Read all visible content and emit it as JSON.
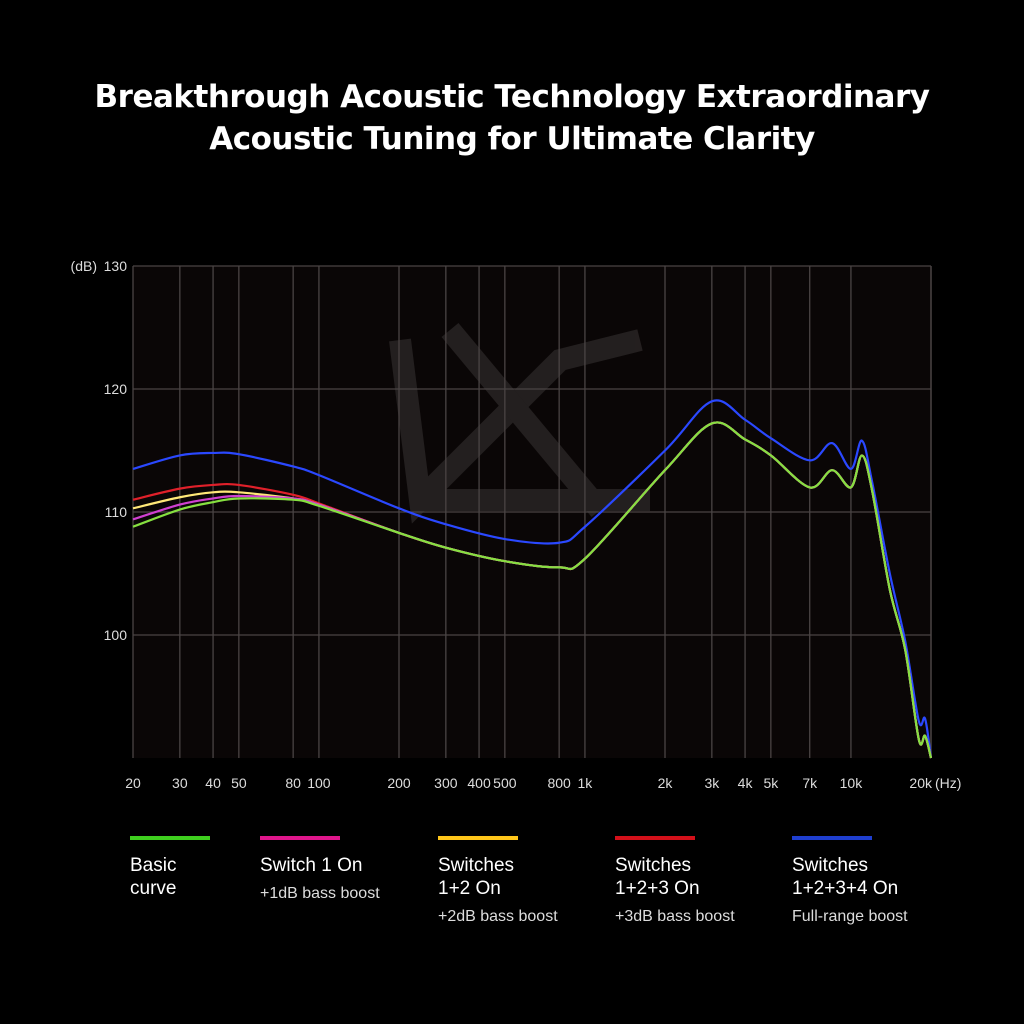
{
  "title_line1": "Breakthrough Acoustic Technology Extraordinary",
  "title_line2": "Acoustic Tuning for Ultimate Clarity",
  "chart_data": {
    "type": "line",
    "title": "Breakthrough Acoustic Technology Extraordinary Acoustic Tuning for Ultimate Clarity",
    "ylabel": "(dB)",
    "xlabel": "(Hz)",
    "xscale": "log",
    "xlim": [
      20,
      20000
    ],
    "ylim": [
      90,
      130
    ],
    "grid": true,
    "legend_placement": "bottom",
    "y_ticks": [
      130,
      120,
      110,
      100
    ],
    "x_ticks": [
      {
        "v": 20,
        "label": "20"
      },
      {
        "v": 30,
        "label": "30"
      },
      {
        "v": 40,
        "label": "40"
      },
      {
        "v": 50,
        "label": "50"
      },
      {
        "v": 80,
        "label": "80"
      },
      {
        "v": 100,
        "label": "100"
      },
      {
        "v": 200,
        "label": "200"
      },
      {
        "v": 300,
        "label": "300"
      },
      {
        "v": 400,
        "label": "400"
      },
      {
        "v": 500,
        "label": "500"
      },
      {
        "v": 800,
        "label": "800"
      },
      {
        "v": 1000,
        "label": "1k"
      },
      {
        "v": 2000,
        "label": "2k"
      },
      {
        "v": 3000,
        "label": "3k"
      },
      {
        "v": 4000,
        "label": "4k"
      },
      {
        "v": 5000,
        "label": "5k"
      },
      {
        "v": 7000,
        "label": "7k"
      },
      {
        "v": 10000,
        "label": "10k"
      },
      {
        "v": 20000,
        "label": "20k"
      }
    ],
    "x": [
      20,
      30,
      40,
      50,
      80,
      100,
      200,
      300,
      500,
      800,
      1000,
      2000,
      3000,
      4000,
      5000,
      7000,
      8500,
      10000,
      11000,
      12000,
      14000,
      16000,
      18000,
      19000,
      20000
    ],
    "series": [
      {
        "name": "Switches 1+2+3+4 On",
        "sub": "Full-range boost",
        "color": "#2a48ff",
        "legend_color": "#1f3fd0",
        "values": [
          113.5,
          114.6,
          114.8,
          114.7,
          113.7,
          113,
          110.3,
          109,
          107.8,
          107.5,
          108.8,
          115,
          119,
          117.5,
          116,
          114.2,
          115.6,
          113.5,
          115.8,
          112.5,
          105,
          99.5,
          93,
          93.2,
          90
        ]
      },
      {
        "name": "Switches 1+2+3 On",
        "sub": "+3dB bass boost",
        "color": "#e0202a",
        "legend_color": "#d4101a",
        "values": [
          111,
          111.9,
          112.2,
          112.2,
          111.4,
          110.7,
          108.3,
          107.1,
          106,
          105.5,
          106.2,
          113.4,
          117.2,
          115.9,
          114.6,
          112,
          113.4,
          112,
          114.6,
          111.8,
          103.7,
          98.8,
          91.5,
          91.8,
          90
        ]
      },
      {
        "name": "Switches 1+2 On",
        "sub": "+2dB bass boost",
        "color": "#ffe878",
        "legend_color": "#ffc61a",
        "values": [
          110.3,
          111.2,
          111.6,
          111.6,
          111.1,
          110.6,
          108.3,
          107.1,
          106,
          105.5,
          106.2,
          113.4,
          117.2,
          115.9,
          114.6,
          112,
          113.4,
          112,
          114.6,
          111.8,
          103.7,
          98.8,
          91.5,
          91.8,
          90
        ]
      },
      {
        "name": "Switch 1 On",
        "sub": "+1dB bass boost",
        "color": "#d040d0",
        "legend_color": "#e0168c",
        "values": [
          109.4,
          110.6,
          111.1,
          111.3,
          111.1,
          110.6,
          108.3,
          107.1,
          106,
          105.5,
          106.2,
          113.4,
          117.2,
          115.9,
          114.6,
          112,
          113.4,
          112,
          114.6,
          111.8,
          103.7,
          98.8,
          91.5,
          91.8,
          90
        ]
      },
      {
        "name": "Basic curve",
        "sub": "",
        "color": "#86e040",
        "legend_color": "#3fcf1f",
        "values": [
          108.8,
          110.2,
          110.8,
          111.1,
          111,
          110.5,
          108.3,
          107.1,
          106,
          105.5,
          106.2,
          113.4,
          117.2,
          115.9,
          114.6,
          112,
          113.4,
          112,
          114.6,
          111.8,
          103.7,
          98.8,
          91.5,
          91.8,
          90
        ]
      }
    ]
  },
  "legend": [
    {
      "label": "Basic\ncurve",
      "sub": "",
      "color": "#3fcf1f"
    },
    {
      "label": "Switch 1 On",
      "sub": "+1dB bass boost",
      "color": "#e0168c"
    },
    {
      "label": "Switches\n1+2 On",
      "sub": "+2dB bass boost",
      "color": "#ffc61a"
    },
    {
      "label": "Switches\n1+2+3 On",
      "sub": "+3dB bass boost",
      "color": "#d4101a"
    },
    {
      "label": "Switches\n1+2+3+4 On",
      "sub": "Full-range boost",
      "color": "#1f3fd0"
    }
  ]
}
